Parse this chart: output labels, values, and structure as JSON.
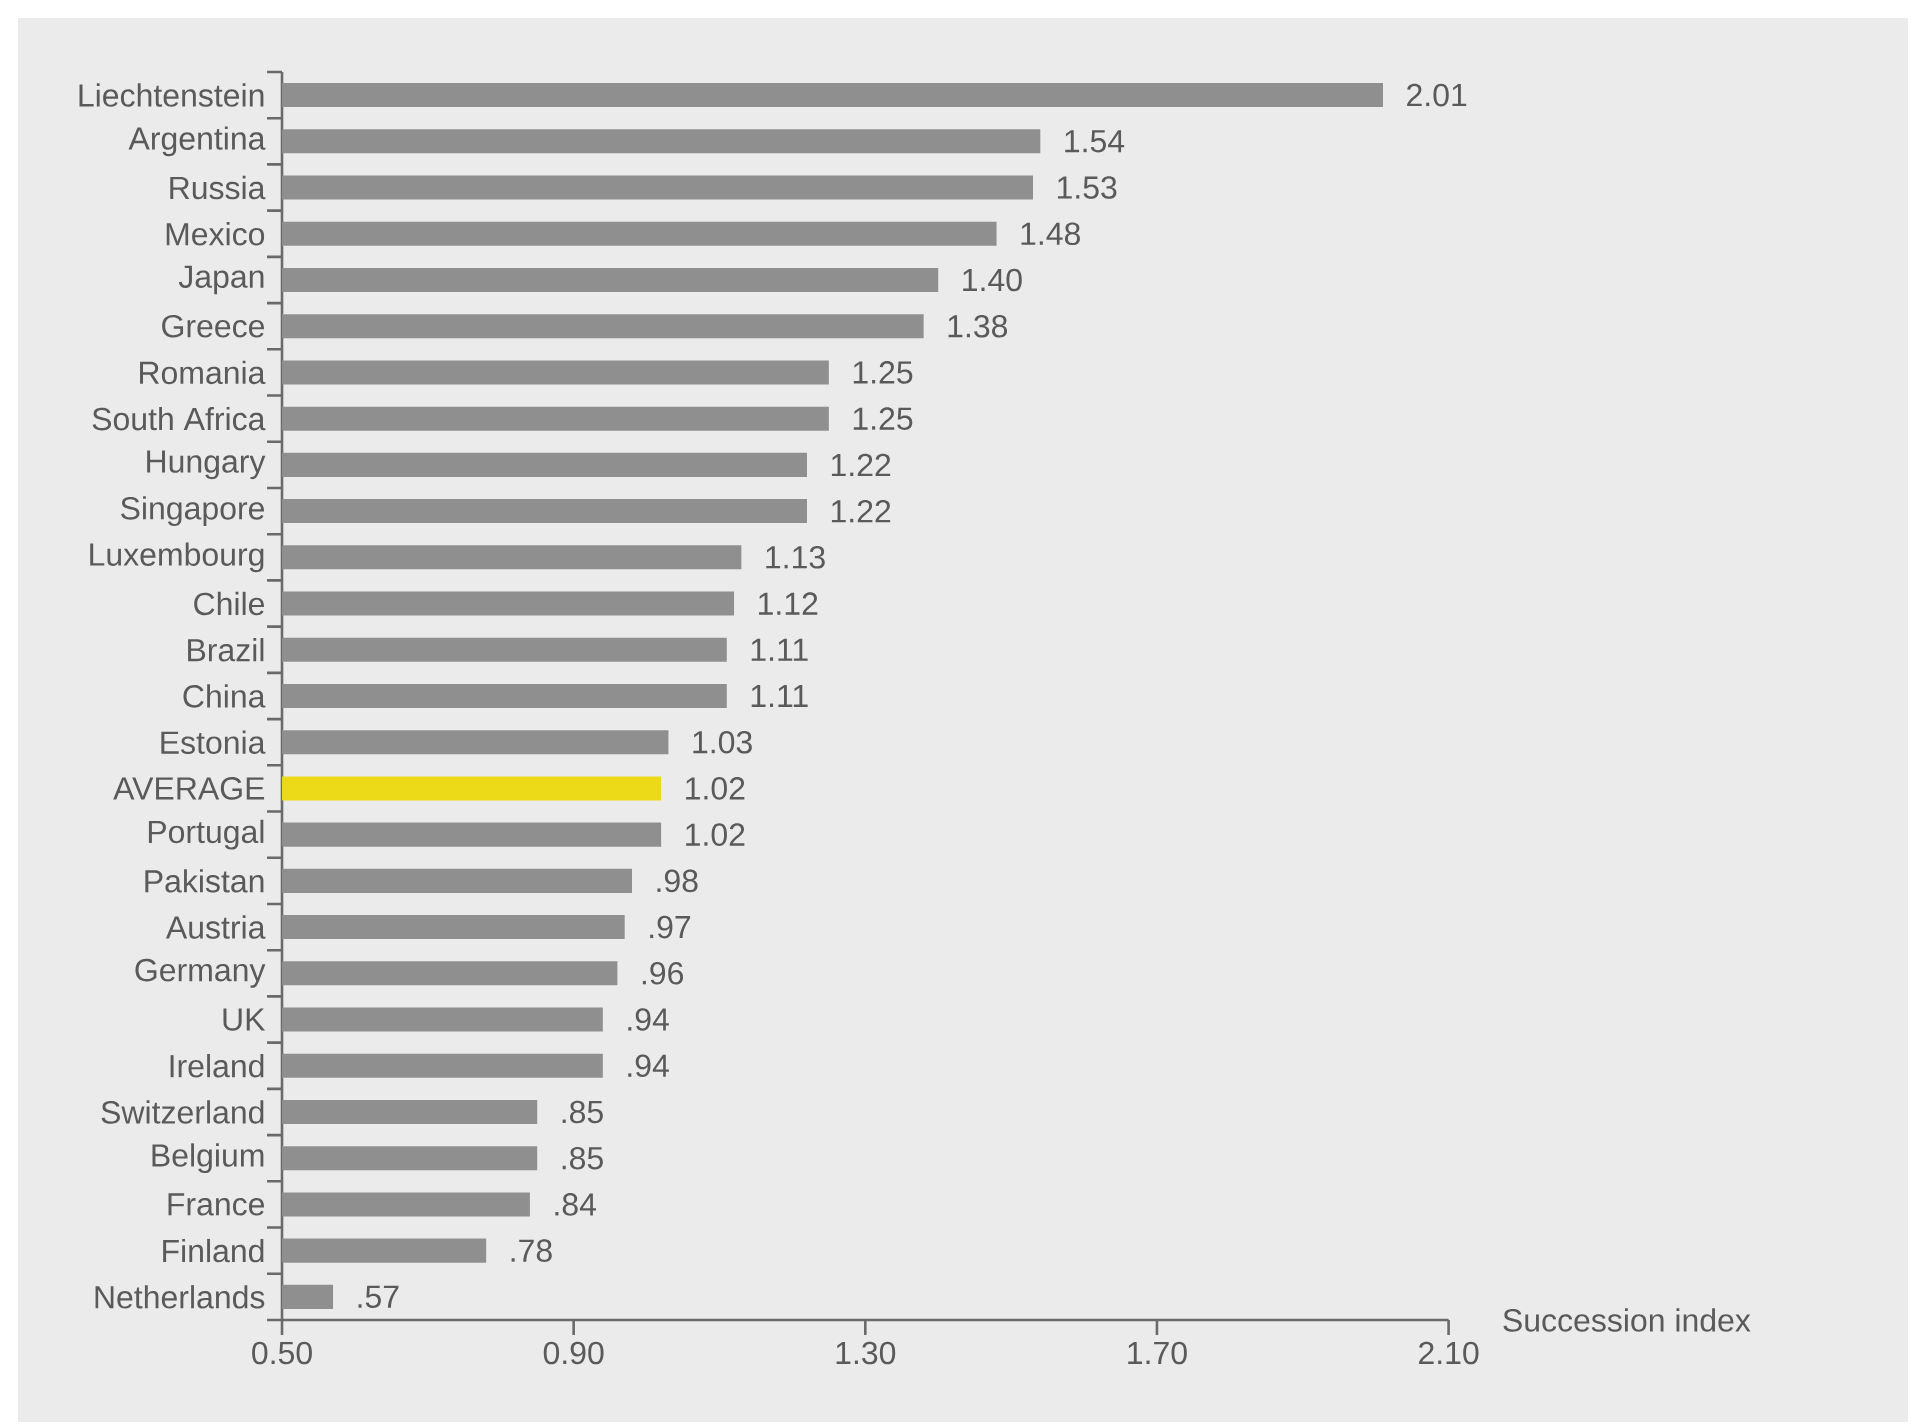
{
  "chart_data": {
    "type": "bar",
    "orientation": "horizontal",
    "xlabel": "Succession index",
    "categories": [
      "Liechtenstein",
      "Argentina",
      "Russia",
      "Mexico",
      "Japan",
      "Greece",
      "Romania",
      "South Africa",
      "Hungary",
      "Singapore",
      "Luxembourg",
      "Chile",
      "Brazil",
      "China",
      "Estonia",
      "AVERAGE",
      "Portugal",
      "Pakistan",
      "Austria",
      "Germany",
      "UK",
      "Ireland",
      "Switzerland",
      "Belgium",
      "France",
      "Finland",
      "Netherlands"
    ],
    "values": [
      2.01,
      1.54,
      1.53,
      1.48,
      1.4,
      1.38,
      1.25,
      1.25,
      1.22,
      1.22,
      1.13,
      1.12,
      1.11,
      1.11,
      1.03,
      1.02,
      1.02,
      0.98,
      0.97,
      0.96,
      0.94,
      0.94,
      0.85,
      0.85,
      0.84,
      0.78,
      0.57
    ],
    "value_labels": [
      "2.01",
      "1.54",
      "1.53",
      "1.48",
      "1.40",
      "1.38",
      "1.25",
      "1.25",
      "1.22",
      "1.22",
      "1.13",
      "1.12",
      "1.11",
      "1.11",
      "1.03",
      "1.02",
      "1.02",
      ".98",
      ".97",
      ".96",
      ".94",
      ".94",
      ".85",
      ".85",
      ".84",
      ".78",
      ".57"
    ],
    "colors": [
      "#8f8f8f",
      "#8f8f8f",
      "#8f8f8f",
      "#8f8f8f",
      "#8f8f8f",
      "#8f8f8f",
      "#8f8f8f",
      "#8f8f8f",
      "#8f8f8f",
      "#8f8f8f",
      "#8f8f8f",
      "#8f8f8f",
      "#8f8f8f",
      "#8f8f8f",
      "#8f8f8f",
      "#ecd918",
      "#8f8f8f",
      "#8f8f8f",
      "#8f8f8f",
      "#8f8f8f",
      "#8f8f8f",
      "#8f8f8f",
      "#8f8f8f",
      "#8f8f8f",
      "#8f8f8f",
      "#8f8f8f",
      "#8f8f8f"
    ],
    "xlim": [
      0.5,
      2.1
    ],
    "xticks": [
      {
        "value": 0.5,
        "label": "0.50"
      },
      {
        "value": 0.9,
        "label": "0.90"
      },
      {
        "value": 1.3,
        "label": "1.30"
      },
      {
        "value": 1.7,
        "label": "1.70"
      },
      {
        "value": 2.1,
        "label": "2.10"
      }
    ]
  }
}
